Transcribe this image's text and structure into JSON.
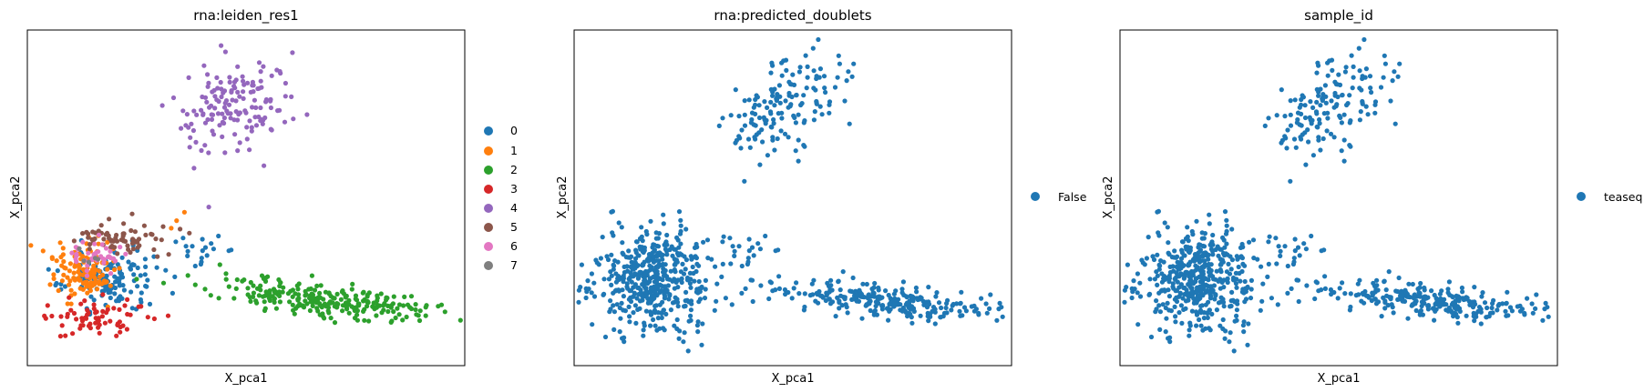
{
  "chart_data": [
    {
      "type": "scatter",
      "title": "rna:leiden_res1",
      "xlabel": "X_pca1",
      "ylabel": "X_pca2",
      "grid": false,
      "legend_placement": "right",
      "xlim": [
        -0.7,
        11.7
      ],
      "ylim": [
        -11.5,
        8.5
      ],
      "series": [
        {
          "name": "0",
          "color": "#1f77b4",
          "clusters": [
            {
              "cx": 1.6,
              "cy": -6.3,
              "sx": 0.65,
              "sy": 0.85,
              "n": 130
            },
            {
              "cx": 4.1,
              "cy": -4.8,
              "sx": 0.5,
              "sy": 0.6,
              "n": 20
            }
          ]
        },
        {
          "name": "1",
          "color": "#ff7f0e",
          "clusters": [
            {
              "cx": 0.9,
              "cy": -5.9,
              "sx": 0.45,
              "sy": 0.8,
              "n": 120
            },
            {
              "cx": 3.3,
              "cy": -2.8,
              "sx": 0.4,
              "sy": 0.6,
              "n": 3
            }
          ]
        },
        {
          "name": "2",
          "color": "#2ca02c",
          "clusters": [
            {
              "cx": 8.0,
              "cy": -7.6,
              "sx": 1.6,
              "sy": 0.45,
              "tilt": -0.45,
              "n": 260
            }
          ]
        },
        {
          "name": "3",
          "color": "#d62728",
          "clusters": [
            {
              "cx": 1.3,
              "cy": -8.6,
              "sx": 0.6,
              "sy": 0.5,
              "n": 70
            }
          ]
        },
        {
          "name": "4",
          "color": "#9467bd",
          "clusters": [
            {
              "cx": 5.2,
              "cy": 4.0,
              "sx": 0.9,
              "sy": 1.4,
              "tilt": 1.2,
              "n": 150
            }
          ]
        },
        {
          "name": "5",
          "color": "#8c564b",
          "clusters": [
            {
              "cx": 2.0,
              "cy": -3.9,
              "sx": 0.7,
              "sy": 0.55,
              "n": 70
            }
          ]
        },
        {
          "name": "6",
          "color": "#e377c2",
          "clusters": [
            {
              "cx": 1.4,
              "cy": -5.0,
              "sx": 0.5,
              "sy": 0.55,
              "n": 40
            }
          ]
        },
        {
          "name": "7",
          "color": "#7f7f7f",
          "clusters": [
            {
              "cx": 1.0,
              "cy": -5.0,
              "sx": 0.25,
              "sy": 0.25,
              "n": 5
            }
          ]
        }
      ]
    },
    {
      "type": "scatter",
      "title": "rna:predicted_doublets",
      "xlabel": "X_pca1",
      "ylabel": "X_pca2",
      "grid": false,
      "legend_placement": "right",
      "xlim": [
        -0.7,
        11.7
      ],
      "ylim": [
        -11.5,
        8.5
      ],
      "series": [
        {
          "name": "False",
          "color": "#1f77b4",
          "clusters": [
            {
              "cx": 1.4,
              "cy": -6.3,
              "sx": 0.85,
              "sy": 1.5,
              "n": 480
            },
            {
              "cx": 4.1,
              "cy": -4.8,
              "sx": 0.5,
              "sy": 0.6,
              "n": 20
            },
            {
              "cx": 8.0,
              "cy": -7.6,
              "sx": 1.6,
              "sy": 0.45,
              "tilt": -0.45,
              "n": 260
            },
            {
              "cx": 5.2,
              "cy": 4.0,
              "sx": 0.9,
              "sy": 1.4,
              "tilt": 1.2,
              "n": 150
            }
          ]
        }
      ]
    },
    {
      "type": "scatter",
      "title": "sample_id",
      "xlabel": "X_pca1",
      "ylabel": "X_pca2",
      "grid": false,
      "legend_placement": "right",
      "xlim": [
        -0.7,
        11.7
      ],
      "ylim": [
        -11.5,
        8.5
      ],
      "series": [
        {
          "name": "teaseq",
          "color": "#1f77b4",
          "clusters": [
            {
              "cx": 1.4,
              "cy": -6.3,
              "sx": 0.85,
              "sy": 1.5,
              "n": 480
            },
            {
              "cx": 4.1,
              "cy": -4.8,
              "sx": 0.5,
              "sy": 0.6,
              "n": 20
            },
            {
              "cx": 8.0,
              "cy": -7.6,
              "sx": 1.6,
              "sy": 0.45,
              "tilt": -0.45,
              "n": 260
            },
            {
              "cx": 5.2,
              "cy": 4.0,
              "sx": 0.9,
              "sy": 1.4,
              "tilt": 1.2,
              "n": 150
            }
          ]
        }
      ]
    }
  ]
}
